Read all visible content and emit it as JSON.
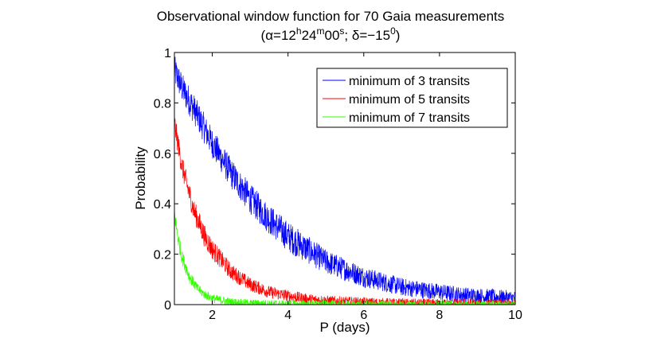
{
  "chart_data": {
    "type": "line",
    "title": "Observational window function for 70 Gaia measurements",
    "subtitle": {
      "open": "(α=12",
      "h_sup": "h",
      "h_after": "24",
      "m_sup": "m",
      "m_after": "00",
      "s_sup": "s",
      "s_after": "; δ=−15",
      "deg_sup": "0",
      "close": ")"
    },
    "xlabel": "P (days)",
    "ylabel": "Probability",
    "xlim": [
      1,
      10
    ],
    "ylim": [
      0,
      1
    ],
    "x_ticks": [
      2,
      4,
      6,
      8,
      10
    ],
    "y_ticks": [
      0,
      0.2,
      0.4,
      0.6,
      0.8,
      1
    ],
    "x_tick_labels": [
      "2",
      "4",
      "6",
      "8",
      "10"
    ],
    "y_tick_labels": [
      "0",
      "0.2",
      "0.4",
      "0.6",
      "0.8",
      "1"
    ],
    "grid": false,
    "legend_position": "top-right",
    "series": [
      {
        "name": "minimum of 3 transits",
        "color": "#0000ff",
        "x": [
          1.0,
          1.2,
          1.5,
          2.0,
          2.5,
          3.0,
          3.5,
          4.0,
          4.5,
          5.0,
          5.5,
          6.0,
          6.5,
          7.0,
          7.5,
          8.0,
          8.5,
          9.0,
          9.5,
          10.0
        ],
        "values": [
          0.93,
          0.86,
          0.78,
          0.64,
          0.52,
          0.42,
          0.34,
          0.27,
          0.22,
          0.17,
          0.14,
          0.11,
          0.09,
          0.07,
          0.06,
          0.05,
          0.04,
          0.035,
          0.03,
          0.025
        ],
        "noise": 0.06
      },
      {
        "name": "minimum of 5 transits",
        "color": "#ff0000",
        "x": [
          1.0,
          1.2,
          1.5,
          1.8,
          2.0,
          2.5,
          3.0,
          3.5,
          4.0,
          4.5,
          5.0,
          6.0,
          7.0,
          8.0,
          9.0,
          10.0
        ],
        "values": [
          0.72,
          0.55,
          0.38,
          0.27,
          0.22,
          0.13,
          0.08,
          0.05,
          0.035,
          0.022,
          0.015,
          0.008,
          0.004,
          0.003,
          0.002,
          0.001
        ],
        "noise": 0.045
      },
      {
        "name": "minimum of 7 transits",
        "color": "#33ff00",
        "x": [
          1.0,
          1.1,
          1.2,
          1.4,
          1.6,
          1.8,
          2.0,
          2.5,
          3.0,
          3.5,
          4.0,
          5.0,
          6.0,
          8.0,
          10.0
        ],
        "values": [
          0.36,
          0.26,
          0.19,
          0.11,
          0.065,
          0.04,
          0.025,
          0.01,
          0.005,
          0.003,
          0.002,
          0.001,
          0.0,
          0.0,
          0.0
        ],
        "noise": 0.035
      }
    ]
  }
}
